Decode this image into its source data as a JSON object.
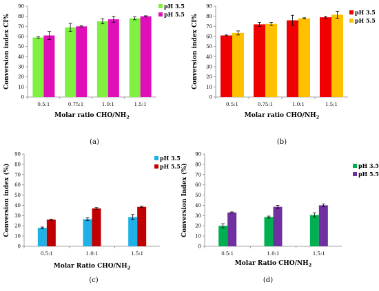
{
  "chart_data": [
    {
      "type": "bar",
      "panel_label": "(a)",
      "xlabel": "Molar ratio CHO/NH",
      "xlabel_sub": "2",
      "ylabel": "Conversion index CI%",
      "ylim": [
        0,
        90
      ],
      "yticks": [
        0,
        10,
        20,
        30,
        40,
        50,
        60,
        70,
        80,
        90
      ],
      "categories": [
        "0.5:1",
        "0.75:1",
        "1.0:1",
        "1.5:1"
      ],
      "legend_position": "top-right",
      "series": [
        {
          "name": "pH 3.5",
          "color": "#80F040",
          "values": [
            59,
            69,
            75,
            78
          ],
          "errors": [
            0.6,
            4,
            2.5,
            1.5
          ]
        },
        {
          "name": "pH 5.5",
          "color": "#E010B8",
          "values": [
            61,
            70,
            77,
            80
          ],
          "errors": [
            4,
            0.5,
            3,
            0.5
          ]
        }
      ]
    },
    {
      "type": "bar",
      "panel_label": "(b)",
      "xlabel": "Molar ratio CHO/NH",
      "xlabel_sub": "2",
      "ylabel": "Conversion index CI%",
      "ylim": [
        0,
        90
      ],
      "yticks": [
        0,
        10,
        20,
        30,
        40,
        50,
        60,
        70,
        80,
        90
      ],
      "categories": [
        "0.5:1",
        "0.75:1",
        "1.0:1",
        "1.5:1"
      ],
      "legend_position": "top-right",
      "series": [
        {
          "name": "pH 3.5",
          "color": "#F00000",
          "values": [
            61,
            72,
            76,
            79
          ],
          "errors": [
            0.5,
            2,
            5,
            1
          ]
        },
        {
          "name": "pH 5.5",
          "color": "#FFC000",
          "values": [
            63.5,
            72.5,
            78,
            81.5
          ],
          "errors": [
            2,
            1.5,
            0.5,
            3.5
          ]
        }
      ]
    },
    {
      "type": "bar",
      "panel_label": "(c)",
      "xlabel": "Molar Ratio CHO/NH",
      "xlabel_sub": "2",
      "ylabel": "Conversion index (%)",
      "ylim": [
        0,
        90
      ],
      "yticks": [
        0,
        10,
        20,
        30,
        40,
        50,
        60,
        70,
        80,
        90
      ],
      "categories": [
        "0.5:1",
        "1.0:1",
        "1.5:1"
      ],
      "legend_position": "top-right",
      "series": [
        {
          "name": "pH 3.5",
          "color": "#20B0E8",
          "values": [
            18,
            26.5,
            28.5
          ],
          "errors": [
            0.8,
            1.2,
            2.5
          ]
        },
        {
          "name": "pH 5.5",
          "color": "#C00000",
          "values": [
            26,
            37,
            38.5
          ],
          "errors": [
            0.5,
            0.8,
            0.7
          ]
        }
      ]
    },
    {
      "type": "bar",
      "panel_label": "(d)",
      "xlabel": "Molar Ratio CHO/NH",
      "xlabel_sub": "2",
      "ylabel": "Conversion Index (%)",
      "ylim": [
        0,
        90
      ],
      "yticks": [
        0,
        10,
        20,
        30,
        40,
        50,
        60,
        70,
        80,
        90
      ],
      "categories": [
        "0.5:1",
        "1.0:1",
        "1.5:1"
      ],
      "legend_position": "top-right",
      "series": [
        {
          "name": "pH 3.5",
          "color": "#00B050",
          "values": [
            20,
            28.5,
            30.5
          ],
          "errors": [
            2,
            1,
            2
          ]
        },
        {
          "name": "pH 5.5",
          "color": "#7030A0",
          "values": [
            33,
            38.5,
            40
          ],
          "errors": [
            0.6,
            1.5,
            1.2
          ]
        }
      ]
    }
  ]
}
